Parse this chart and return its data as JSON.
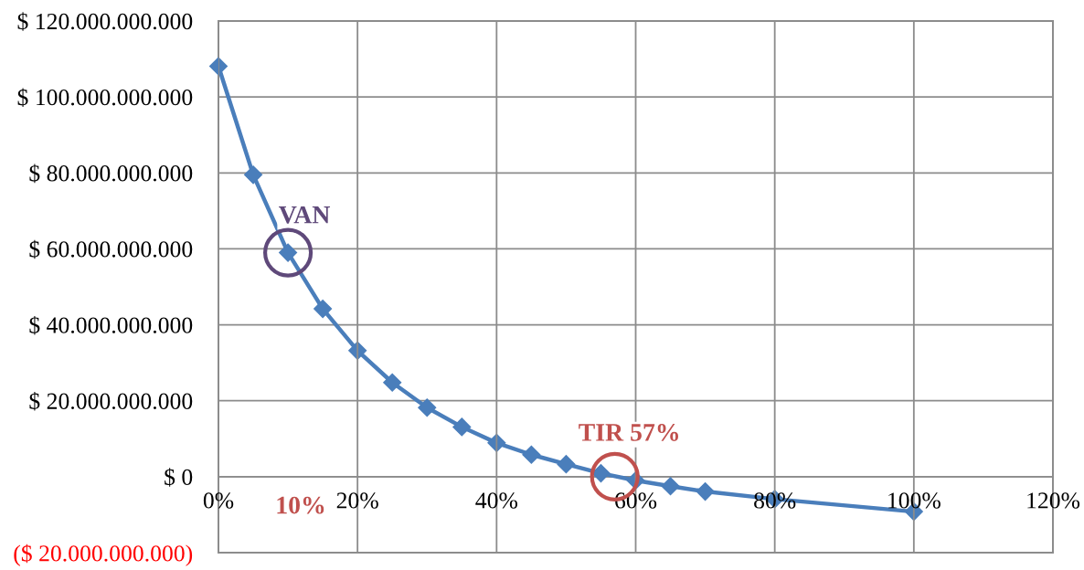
{
  "chart_data": {
    "type": "line",
    "x": [
      0,
      5,
      10,
      15,
      20,
      25,
      30,
      35,
      40,
      45,
      50,
      55,
      60,
      65,
      70,
      80,
      100
    ],
    "series": [
      {
        "color": "#4a7ebb",
        "values": [
          108100000000,
          79500000000,
          59000000000,
          44200000000,
          33200000000,
          24800000000,
          18200000000,
          13100000000,
          8900000000,
          5800000000,
          3300000000,
          900000000,
          -1000000000,
          -2500000000,
          -3900000000,
          -5900000000,
          -9200000000
        ]
      }
    ],
    "xlim": [
      0,
      120
    ],
    "xticks": [
      {
        "value": 0,
        "label": "0%"
      },
      {
        "value": 20,
        "label": "20%"
      },
      {
        "value": 40,
        "label": "40%"
      },
      {
        "value": 60,
        "label": "60%"
      },
      {
        "value": 80,
        "label": "80%"
      },
      {
        "value": 100,
        "label": "100%"
      },
      {
        "value": 120,
        "label": "120%"
      }
    ],
    "ylim": [
      -20000000000,
      120000000000
    ],
    "yticks": [
      {
        "value": -20000000000,
        "label": "($ 20.000.000.000)"
      },
      {
        "value": 0,
        "label": "$ 0"
      },
      {
        "value": 20000000000,
        "label": "$ 20.000.000.000"
      },
      {
        "value": 40000000000,
        "label": "$ 40.000.000.000"
      },
      {
        "value": 60000000000,
        "label": "$ 60.000.000.000"
      },
      {
        "value": 80000000000,
        "label": "$ 80.000.000.000"
      },
      {
        "value": 100000000000,
        "label": "$ 100.000.000.000"
      },
      {
        "value": 120000000000,
        "label": "$ 120.000.000.000"
      }
    ],
    "grid": true,
    "marker": "diamond",
    "line_style": "solid",
    "annotations": [
      {
        "text": "VAN",
        "x": 10,
        "y": 59000000000
      },
      "10%",
      {
        "text": "TIR 57%",
        "x": 57,
        "y": 0
      }
    ]
  }
}
